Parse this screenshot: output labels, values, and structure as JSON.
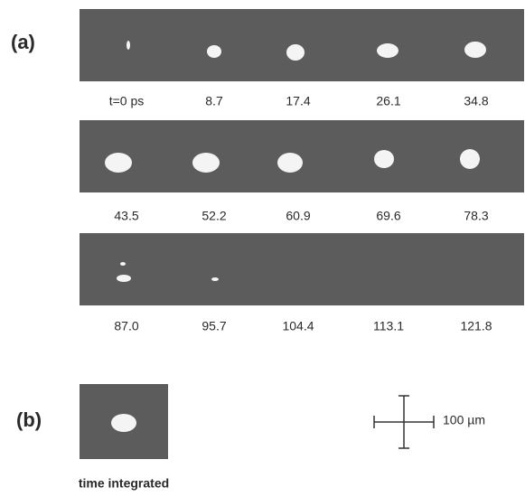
{
  "panel_a": {
    "label": "(a)",
    "frames": [
      "t=0 ps",
      "8.7",
      "17.4",
      "26.1",
      "34.8",
      "43.5",
      "52.2",
      "60.9",
      "69.6",
      "78.3",
      "87.0",
      "95.7",
      "104.4",
      "113.1",
      "121.8"
    ]
  },
  "panel_b": {
    "label": "(b)",
    "caption": "time integrated"
  },
  "scale_bar": {
    "label": "100 µm"
  }
}
